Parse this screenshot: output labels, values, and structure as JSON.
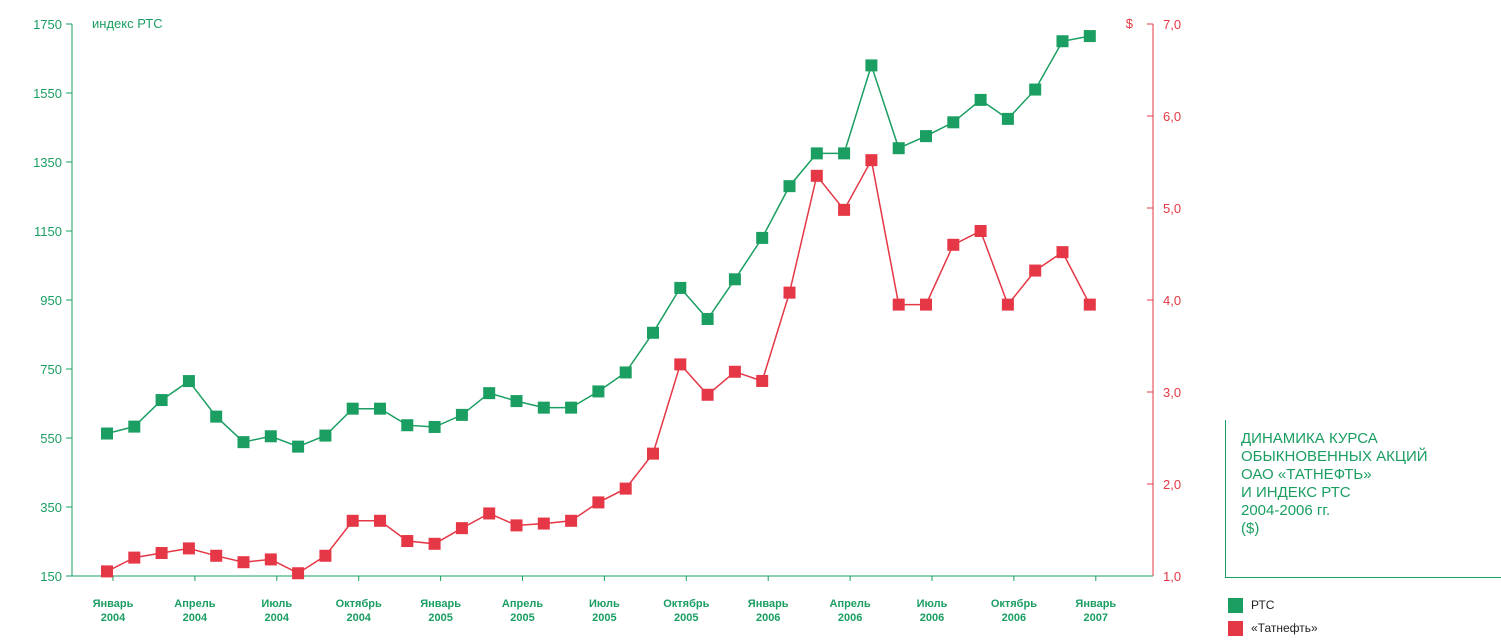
{
  "chart_data": {
    "type": "line",
    "title": "ДИНАМИКА КУРСА\nОБЫКНОВЕННЫХ АКЦИЙ\nОАО «ТАТНЕФТЬ»\nИ ИНДЕКС РТС\n2004-2006 гг.\n($)",
    "y_left_label": "индекс РТС",
    "y_right_label": "$",
    "y_left_ticks": [
      "1750",
      "1550",
      "1350",
      "1150",
      "950",
      "750",
      "550",
      "350",
      "150"
    ],
    "y_right_ticks": [
      "7,0",
      "6,0",
      "5,0",
      "4,0",
      "3,0",
      "2,0",
      "1,0"
    ],
    "y_left_lim": [
      150,
      1750
    ],
    "y_right_lim": [
      1.0,
      7.0
    ],
    "x_tick_labels": [
      {
        "month": "Январь",
        "year": "2004"
      },
      {
        "month": "Апрель",
        "year": "2004"
      },
      {
        "month": "Июль",
        "year": "2004"
      },
      {
        "month": "Октябрь",
        "year": "2004"
      },
      {
        "month": "Январь",
        "year": "2005"
      },
      {
        "month": "Апрель",
        "year": "2005"
      },
      {
        "month": "Июль",
        "year": "2005"
      },
      {
        "month": "Октябрь",
        "year": "2005"
      },
      {
        "month": "Январь",
        "year": "2006"
      },
      {
        "month": "Апрель",
        "year": "2006"
      },
      {
        "month": "Июль",
        "year": "2006"
      },
      {
        "month": "Октябрь",
        "year": "2006"
      },
      {
        "month": "Январь",
        "year": "2007"
      }
    ],
    "series": [
      {
        "name": "РТС",
        "axis": "left",
        "color": "#1a9e61",
        "values": [
          563,
          583,
          660,
          715,
          612,
          538,
          555,
          525,
          557,
          635,
          635,
          587,
          582,
          617,
          680,
          657,
          638,
          638,
          685,
          740,
          855,
          985,
          895,
          1010,
          1130,
          1280,
          1375,
          1375,
          1630,
          1390,
          1425,
          1465,
          1530,
          1475,
          1560,
          1700,
          1715
        ]
      },
      {
        "name": "«Татнефть»",
        "axis": "right",
        "color": "#e53745",
        "values": [
          1.05,
          1.2,
          1.25,
          1.3,
          1.22,
          1.15,
          1.18,
          1.03,
          1.22,
          1.6,
          1.6,
          1.38,
          1.35,
          1.52,
          1.68,
          1.55,
          1.57,
          1.6,
          1.8,
          1.95,
          2.33,
          3.3,
          2.97,
          3.22,
          3.12,
          4.08,
          5.35,
          4.98,
          5.52,
          3.95,
          3.95,
          4.6,
          4.75,
          3.95,
          4.32,
          4.52,
          3.95
        ]
      }
    ]
  },
  "legend": {
    "items": [
      {
        "label": "РТС",
        "color": "#1a9e61"
      },
      {
        "label": "«Татнефть»",
        "color": "#e53745"
      }
    ]
  }
}
